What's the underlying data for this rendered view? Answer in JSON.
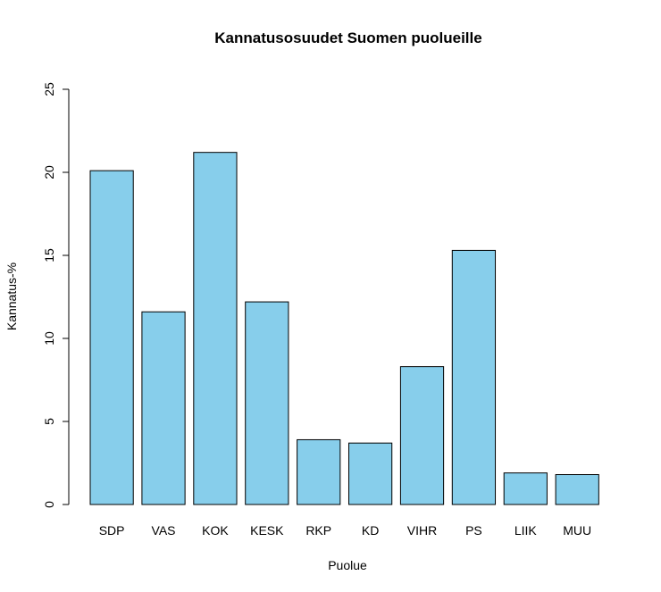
{
  "chart_data": {
    "type": "bar",
    "title": "Kannatusosuudet Suomen puolueille",
    "xlabel": "Puolue",
    "ylabel": "Kannatus-%",
    "categories": [
      "SDP",
      "VAS",
      "KOK",
      "KESK",
      "RKP",
      "KD",
      "VIHR",
      "PS",
      "LIIK",
      "MUU"
    ],
    "values": [
      20.1,
      11.6,
      21.2,
      12.2,
      3.9,
      3.7,
      8.3,
      15.3,
      1.9,
      1.8
    ],
    "ylim": [
      0,
      25
    ],
    "yticks": [
      "0",
      "5",
      "10",
      "15",
      "20",
      "25"
    ],
    "bar_color": "#87CEEB",
    "grid": false,
    "legend": "none"
  }
}
